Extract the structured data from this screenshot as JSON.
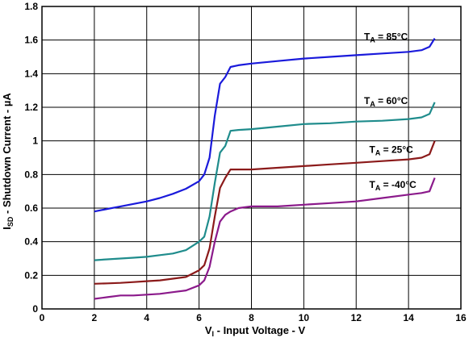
{
  "chart_data": {
    "type": "line",
    "xlabel": {
      "main": "V",
      "sub": "I",
      "rest": " - Input Voltage - V"
    },
    "ylabel": {
      "main": "I",
      "sub": "SD",
      "rest": " - Shutdown Current - µA"
    },
    "xlim": [
      0,
      16
    ],
    "ylim": [
      0,
      1.8
    ],
    "xticks": [
      "0",
      "2",
      "4",
      "6",
      "8",
      "10",
      "12",
      "14",
      "16"
    ],
    "yticks": [
      "0",
      "0.2",
      "0.4",
      "0.6",
      "0.8",
      "1",
      "1.2",
      "1.4",
      "1.6",
      "1.8"
    ],
    "grid": true,
    "series": [
      {
        "name": {
          "main": "T",
          "sub": "A",
          "rest": " = 85°C"
        },
        "color": "#1a1adb",
        "x": [
          2,
          2.5,
          3,
          3.5,
          4,
          4.5,
          5,
          5.5,
          6,
          6.2,
          6.4,
          6.6,
          6.8,
          7,
          7.2,
          7.5,
          8,
          9,
          10,
          11,
          12,
          13,
          14,
          14.5,
          14.8,
          15
        ],
        "y": [
          0.58,
          0.595,
          0.61,
          0.625,
          0.64,
          0.66,
          0.685,
          0.715,
          0.76,
          0.8,
          0.9,
          1.15,
          1.34,
          1.38,
          1.44,
          1.45,
          1.46,
          1.475,
          1.49,
          1.5,
          1.51,
          1.52,
          1.53,
          1.54,
          1.56,
          1.61
        ]
      },
      {
        "name": {
          "main": "T",
          "sub": "A",
          "rest": " = 60°C"
        },
        "color": "#1f8c8c",
        "x": [
          2,
          2.5,
          3,
          3.5,
          4,
          4.5,
          5,
          5.5,
          6,
          6.2,
          6.4,
          6.6,
          6.8,
          7,
          7.2,
          7.5,
          8,
          9,
          10,
          11,
          12,
          13,
          14,
          14.5,
          14.8,
          15
        ],
        "y": [
          0.29,
          0.295,
          0.3,
          0.305,
          0.31,
          0.32,
          0.33,
          0.35,
          0.4,
          0.43,
          0.55,
          0.75,
          0.93,
          0.97,
          1.06,
          1.065,
          1.07,
          1.085,
          1.1,
          1.105,
          1.115,
          1.12,
          1.13,
          1.14,
          1.16,
          1.23
        ]
      },
      {
        "name": {
          "main": "T",
          "sub": "A",
          "rest": " = 25°C"
        },
        "color": "#8b1a1a",
        "x": [
          2,
          2.5,
          3,
          3.5,
          4,
          4.5,
          5,
          5.5,
          6,
          6.2,
          6.4,
          6.6,
          6.8,
          7,
          7.2,
          7.5,
          8,
          9,
          10,
          11,
          12,
          13,
          14,
          14.5,
          14.8,
          15
        ],
        "y": [
          0.15,
          0.152,
          0.155,
          0.16,
          0.165,
          0.17,
          0.18,
          0.19,
          0.23,
          0.26,
          0.36,
          0.55,
          0.72,
          0.78,
          0.83,
          0.83,
          0.83,
          0.84,
          0.85,
          0.86,
          0.87,
          0.88,
          0.89,
          0.9,
          0.92,
          1.0
        ]
      },
      {
        "name": {
          "main": "T",
          "sub": "A",
          "rest": " = -40°C"
        },
        "color": "#8b1a8b",
        "x": [
          2,
          2.5,
          3,
          3.5,
          4,
          4.5,
          5,
          5.5,
          6,
          6.2,
          6.4,
          6.6,
          6.8,
          7,
          7.2,
          7.5,
          8,
          9,
          10,
          11,
          12,
          13,
          14,
          14.5,
          14.8,
          15
        ],
        "y": [
          0.06,
          0.07,
          0.08,
          0.08,
          0.085,
          0.09,
          0.1,
          0.11,
          0.14,
          0.17,
          0.25,
          0.4,
          0.52,
          0.56,
          0.58,
          0.6,
          0.61,
          0.61,
          0.62,
          0.63,
          0.64,
          0.66,
          0.68,
          0.69,
          0.7,
          0.78
        ]
      }
    ]
  }
}
